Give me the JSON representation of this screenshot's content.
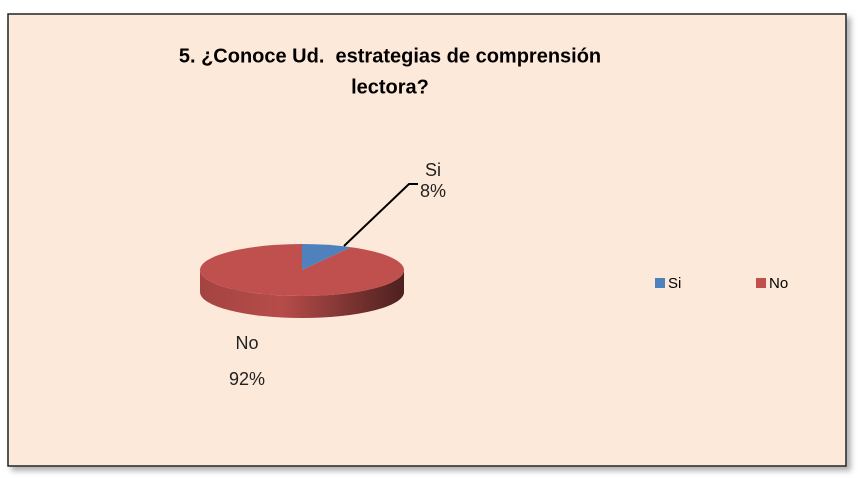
{
  "chart_data": {
    "type": "pie",
    "title": [
      "5. ¿Conoce Ud.  estrategias de comprensión",
      "lectora?"
    ],
    "categories": [
      "Si",
      "No"
    ],
    "values": [
      8,
      92
    ],
    "value_labels": [
      "8%",
      "92%"
    ],
    "colors": [
      "#4f81bd",
      "#c0504d"
    ],
    "legend": "right"
  }
}
